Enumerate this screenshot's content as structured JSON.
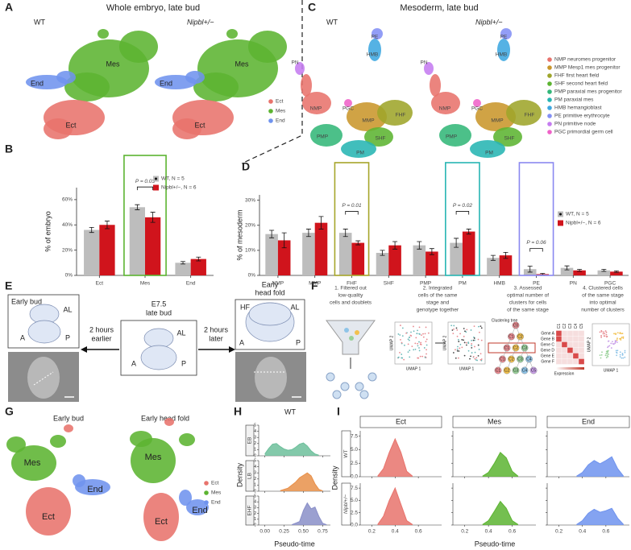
{
  "panel_a": {
    "label": "A",
    "title": "Whole embryo, late bud",
    "plots": [
      {
        "name": "WT",
        "labels": [
          "Mes",
          "End",
          "Ect"
        ]
      },
      {
        "name": "Nipbl+/−",
        "labels": [
          "Mes",
          "End",
          "Ect"
        ]
      }
    ],
    "legend": [
      {
        "name": "Ect",
        "color": "#e8736c"
      },
      {
        "name": "Mes",
        "color": "#5cb431"
      },
      {
        "name": "End",
        "color": "#6f93ee"
      }
    ]
  },
  "panel_c": {
    "label": "C",
    "title": "Mesoderm, late bud",
    "plots": [
      {
        "name": "WT",
        "labels": [
          "NMP",
          "MMP",
          "FHF",
          "SHF",
          "PMP",
          "PM",
          "HMB",
          "PE",
          "PN",
          "PGC"
        ]
      },
      {
        "name": "Nipbl+/−",
        "labels": [
          "NMP",
          "MMP",
          "FHF",
          "SHF",
          "PMP",
          "PM",
          "HMB",
          "PE",
          "PN",
          "PGC"
        ]
      }
    ],
    "legend": [
      {
        "name": "NMP neuromes progenitor",
        "color": "#e8736c"
      },
      {
        "name": "MMP Mesp1 mes progenitor",
        "color": "#c9962b"
      },
      {
        "name": "FHF first heart field",
        "color": "#9ea52a"
      },
      {
        "name": "SHF second heart field",
        "color": "#5cb431"
      },
      {
        "name": "PMP paraxial mes progenitor",
        "color": "#33b779"
      },
      {
        "name": "PM paraxial mes",
        "color": "#27b5b3"
      },
      {
        "name": "HMB hemangioblast",
        "color": "#3ea7e0"
      },
      {
        "name": "PE primitive erythrocyte",
        "color": "#8390f5"
      },
      {
        "name": "PN primitive node",
        "color": "#c57cf0"
      },
      {
        "name": "PGC primordial germ cell",
        "color": "#ef62c8"
      }
    ]
  },
  "panel_e": {
    "label": "E",
    "early_bud": {
      "title": "Early bud",
      "marks": [
        "A",
        "P",
        "AL"
      ]
    },
    "late_bud": {
      "title": [
        "E7.5",
        "late bud"
      ],
      "marks": [
        "AL",
        "A",
        "P"
      ]
    },
    "earlier": [
      "2 hours",
      "earlier"
    ],
    "later": [
      "2 hours",
      "later"
    ],
    "head_fold": {
      "title": [
        "Early",
        "head fold"
      ],
      "marks": [
        "HF",
        "AL",
        "A",
        "P"
      ]
    }
  },
  "panel_f": {
    "label": "F",
    "steps": [
      [
        "1. Filtered out",
        "low-quality",
        "cells and doublets"
      ],
      [
        "2. Integrated",
        "cells of the same",
        "stage and",
        "genotype together"
      ],
      [
        "3. Assessed",
        "optimal number of",
        "clusters for cells",
        "of the same stage"
      ],
      [
        "4. Clustered cells",
        "of the same stage",
        "into optimal",
        "number of clusters"
      ]
    ],
    "umap_x": "UMAP 1",
    "umap_y": "UMAP 2",
    "tree_title": "Clustering tree",
    "tree": [
      [
        "C0"
      ],
      [
        "C1",
        "C2"
      ],
      [
        "C1",
        "C2",
        "C3"
      ],
      [
        "C1",
        "C2",
        "C3",
        "C4"
      ],
      [
        "C1",
        "C2",
        "C3",
        "C4",
        "C5"
      ]
    ],
    "genes": [
      "Gene A",
      "Gene B",
      "Gene C",
      "Gene D",
      "Gene E",
      "Gene F"
    ],
    "clusters": [
      "C1",
      "C2",
      "C3",
      "C4",
      "C5"
    ],
    "expression": "Expression"
  },
  "panel_g": {
    "label": "G",
    "plots": [
      {
        "name": "Early bud",
        "labels": [
          "Mes",
          "End",
          "Ect"
        ]
      },
      {
        "name": "Early head fold",
        "labels": [
          "Mes",
          "End",
          "Ect"
        ]
      }
    ],
    "legend": [
      {
        "name": "Ect",
        "color": "#e8736c"
      },
      {
        "name": "Mes",
        "color": "#5cb431"
      },
      {
        "name": "End",
        "color": "#6f93ee"
      }
    ]
  },
  "chart_data": [
    {
      "type": "bar",
      "label": "B",
      "ylabel": "% of embryo",
      "categories": [
        "Ect",
        "Mes",
        "End"
      ],
      "series": [
        {
          "name": "WT, N = 5",
          "color": "#bdbdbd",
          "values": [
            36,
            54,
            10
          ],
          "errors": [
            2,
            2,
            1
          ]
        },
        {
          "name": "Nipbl+/−, N = 6",
          "color": "#d0141c",
          "values": [
            40,
            46,
            13
          ],
          "errors": [
            3,
            4,
            1.5
          ]
        }
      ],
      "ylim": [
        0,
        95
      ],
      "yticks": [
        {
          "value": 0,
          "label": "0%"
        },
        {
          "value": 20,
          "label": "20%"
        },
        {
          "value": 40,
          "label": "40%"
        },
        {
          "value": 60,
          "label": "60%"
        }
      ],
      "annotations": [
        {
          "text": "P = 0.03",
          "category": "Mes",
          "color": "#5cb431"
        }
      ]
    },
    {
      "type": "bar",
      "label": "D",
      "ylabel": "% of mesoderm",
      "categories": [
        "NMP",
        "MMP",
        "FHF",
        "SHF",
        "PMP",
        "PM",
        "HMB",
        "PE",
        "PN",
        "PGC"
      ],
      "series": [
        {
          "name": "WT, N = 5",
          "color": "#bdbdbd",
          "values": [
            16.5,
            17,
            17,
            9,
            12,
            13,
            7,
            2.5,
            3,
            2
          ],
          "errors": [
            1.5,
            1.5,
            1.5,
            1,
            1.5,
            1.8,
            1,
            1.2,
            0.8,
            0.4
          ]
        },
        {
          "name": "Nipbl+/−, N = 6",
          "color": "#d0141c",
          "values": [
            14,
            21,
            13,
            12,
            9.5,
            17.5,
            8,
            0.5,
            2,
            1.5
          ],
          "errors": [
            3,
            2.5,
            0.8,
            1.5,
            1.2,
            1,
            1.2,
            0.3,
            0.4,
            0.3
          ]
        }
      ],
      "ylim": [
        0,
        45
      ],
      "yticks": [
        {
          "value": 0,
          "label": "0%"
        },
        {
          "value": 10,
          "label": "10%"
        },
        {
          "value": 20,
          "label": "20%"
        },
        {
          "value": 30,
          "label": "30%"
        }
      ],
      "annotations": [
        {
          "text": "P = 0.01",
          "category": "FHF",
          "color": "#a6a52a"
        },
        {
          "text": "P = 0.02",
          "category": "PM",
          "color": "#27b5b3"
        },
        {
          "text": "P = 0.06",
          "category": "PE",
          "color": "#8a88f0"
        }
      ]
    },
    {
      "type": "density",
      "label": "H",
      "title": "WT",
      "xlabel": "Pseudo-time",
      "ylabel": "Density",
      "xlim": [
        -0.08,
        0.85
      ],
      "xticks": [
        {
          "value": 0,
          "label": "0.00"
        },
        {
          "value": 0.25,
          "label": "0.25"
        },
        {
          "value": 0.5,
          "label": "0.50"
        },
        {
          "value": 0.75,
          "label": "0.75"
        }
      ],
      "ylim": [
        0,
        5
      ],
      "yticks": [
        0,
        1,
        2,
        3,
        4,
        5
      ],
      "facets": [
        {
          "name": "EB",
          "color": "#6dbf9b",
          "x": [
            0,
            0.05,
            0.1,
            0.15,
            0.2,
            0.25,
            0.3,
            0.35,
            0.4,
            0.45,
            0.5,
            0.55,
            0.6,
            0.65,
            0.7
          ],
          "values": [
            0.3,
            1.2,
            1.9,
            2.0,
            1.5,
            1.1,
            0.9,
            1.0,
            1.4,
            1.9,
            2.1,
            1.6,
            0.8,
            0.3,
            0.1
          ]
        },
        {
          "name": "LB",
          "color": "#e8904a",
          "x": [
            0.2,
            0.3,
            0.4,
            0.45,
            0.5,
            0.55,
            0.6,
            0.65,
            0.7,
            0.75
          ],
          "values": [
            0.1,
            0.5,
            1.5,
            2.2,
            2.6,
            3.0,
            2.5,
            1.2,
            0.3,
            0.05
          ]
        },
        {
          "name": "EHF",
          "color": "#8a8fc8",
          "x": [
            0.35,
            0.45,
            0.5,
            0.55,
            0.6,
            0.65,
            0.7,
            0.75,
            0.8
          ],
          "values": [
            0.05,
            0.6,
            2.5,
            3.8,
            2.8,
            3.1,
            1.5,
            0.3,
            0.05
          ]
        }
      ]
    },
    {
      "type": "density",
      "label": "I",
      "xlabel": "Pseudo-time",
      "ylabel": "Density",
      "columns": [
        "Ect",
        "Mes",
        "End"
      ],
      "rows": [
        "WT",
        "Nipbl+/−"
      ],
      "xlim": [
        0.1,
        0.8
      ],
      "xticks": [
        0.2,
        0.4,
        0.6
      ],
      "ylim": [
        0,
        8.5
      ],
      "yticks": [
        {
          "value": 0,
          "label": "0.0"
        },
        {
          "value": 2.5,
          "label": "2.5"
        },
        {
          "value": 5,
          "label": "5.0"
        },
        {
          "value": 7.5,
          "label": "7.5"
        }
      ],
      "facets": [
        [
          {
            "color": "#e8736c",
            "x": [
              0.25,
              0.3,
              0.35,
              0.4,
              0.45,
              0.5,
              0.55
            ],
            "values": [
              0.1,
              1.5,
              4.5,
              7,
              4.5,
              1,
              0.1
            ]
          },
          {
            "color": "#5cb431",
            "x": [
              0.35,
              0.4,
              0.45,
              0.5,
              0.55,
              0.6,
              0.65
            ],
            "values": [
              0.1,
              0.8,
              2.5,
              4.5,
              3.5,
              1,
              0.1
            ]
          },
          {
            "color": "#6f93ee",
            "x": [
              0.35,
              0.4,
              0.45,
              0.5,
              0.55,
              0.6,
              0.65,
              0.7,
              0.75
            ],
            "values": [
              0.1,
              0.8,
              2.2,
              3,
              2.4,
              3,
              3.7,
              1.5,
              0.1
            ]
          }
        ],
        [
          {
            "color": "#e8736c",
            "x": [
              0.25,
              0.3,
              0.35,
              0.4,
              0.45,
              0.5,
              0.55
            ],
            "values": [
              0.1,
              1.8,
              5,
              7.5,
              4.2,
              0.9,
              0.1
            ]
          },
          {
            "color": "#5cb431",
            "x": [
              0.35,
              0.4,
              0.45,
              0.5,
              0.55,
              0.6,
              0.65
            ],
            "values": [
              0.1,
              0.9,
              2.8,
              4.8,
              3.4,
              0.9,
              0.1
            ]
          },
          {
            "color": "#6f93ee",
            "x": [
              0.35,
              0.4,
              0.45,
              0.5,
              0.55,
              0.6,
              0.65,
              0.7,
              0.75
            ],
            "values": [
              0.1,
              0.9,
              2.4,
              3.2,
              2.6,
              2.9,
              3.4,
              1.4,
              0.1
            ]
          }
        ]
      ]
    }
  ]
}
